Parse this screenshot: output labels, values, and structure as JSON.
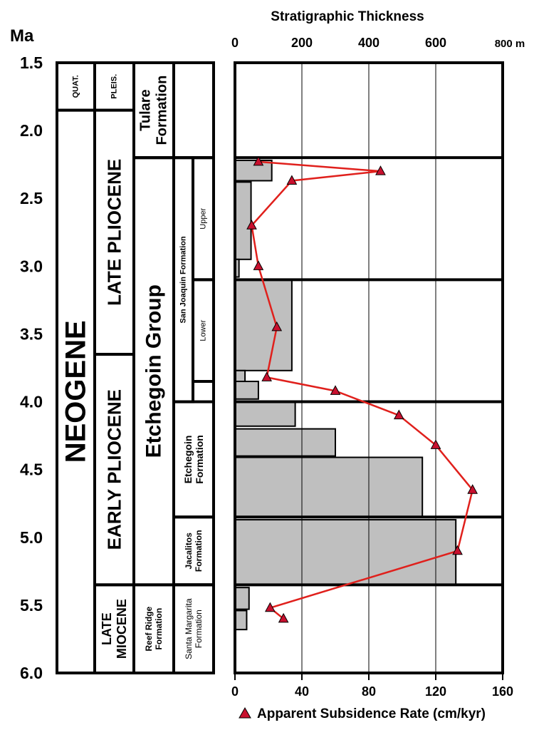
{
  "age_axis": {
    "label": "Ma",
    "ticks": [
      "1.5",
      "2.0",
      "2.5",
      "3.0",
      "3.5",
      "4.0",
      "4.5",
      "5.0",
      "5.5",
      "6.0"
    ]
  },
  "columns": {
    "era": [
      {
        "label": "QUAT.",
        "top": 1.5,
        "bottom": 1.85
      },
      {
        "label": "NEOGENE",
        "top": 1.85,
        "bottom": 6.0
      }
    ],
    "epoch": [
      {
        "label": "PLEIS.",
        "top": 1.5,
        "bottom": 1.85
      },
      {
        "label": "LATE PLIOCENE",
        "top": 1.85,
        "bottom": 3.65
      },
      {
        "label": "EARLY PLIOCENE",
        "top": 3.65,
        "bottom": 5.35
      },
      {
        "label": "LATE\nMIOCENE",
        "top": 5.35,
        "bottom": 6.0
      }
    ],
    "group": [
      {
        "label": "Tulare\nFormation",
        "top": 1.5,
        "bottom": 2.2
      },
      {
        "label": "Etchegoin Group",
        "top": 2.2,
        "bottom": 5.35
      },
      {
        "label": "Reef Ridge\nFormation",
        "top": 5.35,
        "bottom": 6.0
      }
    ],
    "formation": [
      {
        "label": "San Joaquin Formation",
        "top": 2.2,
        "bottom": 4.0
      },
      {
        "label": "Etchegoin\nFormation",
        "top": 4.0,
        "bottom": 4.85
      },
      {
        "label": "Jacalitos\nFormation",
        "top": 4.85,
        "bottom": 5.35
      },
      {
        "label": "Santa Margarita\nFormation",
        "top": 5.35,
        "bottom": 6.0
      }
    ],
    "member": [
      {
        "label": "Upper",
        "top": 2.2,
        "bottom": 3.1
      },
      {
        "label": "Lower",
        "top": 3.1,
        "bottom": 3.85
      }
    ]
  },
  "chart_data": {
    "type": "bar",
    "orientation": "horizontal",
    "top_axis": {
      "title": "Stratigraphic Thickness",
      "ticks": [
        "0",
        "200",
        "400",
        "600",
        "800 m"
      ],
      "range": [
        0,
        800
      ]
    },
    "bottom_axis": {
      "ticks": [
        "0",
        "40",
        "80",
        "120",
        "160"
      ],
      "range": [
        0,
        160
      ]
    },
    "y_range": [
      1.5,
      6.0
    ],
    "y_unit": "Ma",
    "gridlines": [
      200,
      400,
      600
    ],
    "boundaries": [
      2.2,
      3.1,
      4.0,
      4.85,
      5.35
    ],
    "thickness_bars": [
      {
        "top": 2.22,
        "bottom": 2.37,
        "value": 110
      },
      {
        "top": 2.38,
        "bottom": 2.95,
        "value": 48
      },
      {
        "top": 2.95,
        "bottom": 3.08,
        "value": 12
      },
      {
        "top": 3.1,
        "bottom": 3.77,
        "value": 170
      },
      {
        "top": 3.77,
        "bottom": 3.85,
        "value": 30
      },
      {
        "top": 3.85,
        "bottom": 3.98,
        "value": 70
      },
      {
        "top": 4.0,
        "bottom": 4.18,
        "value": 180
      },
      {
        "top": 4.2,
        "bottom": 4.4,
        "value": 300
      },
      {
        "top": 4.41,
        "bottom": 4.85,
        "value": 560
      },
      {
        "top": 4.87,
        "bottom": 5.35,
        "value": 660
      },
      {
        "top": 5.37,
        "bottom": 5.53,
        "value": 42
      },
      {
        "top": 5.54,
        "bottom": 5.68,
        "value": 35
      }
    ],
    "series": [
      {
        "name": "Apparent Subsidence Rate (cm/kyr)",
        "color": "#e0201c",
        "marker": "triangle",
        "marker_color": "#c8102e",
        "points": [
          {
            "age": 2.23,
            "rate": 14
          },
          {
            "age": 2.3,
            "rate": 87
          },
          {
            "age": 2.37,
            "rate": 34
          },
          {
            "age": 2.7,
            "rate": 10
          },
          {
            "age": 3.0,
            "rate": 14
          },
          {
            "age": 3.45,
            "rate": 25
          },
          {
            "age": 3.82,
            "rate": 19
          },
          {
            "age": 3.92,
            "rate": 60
          },
          {
            "age": 4.1,
            "rate": 98
          },
          {
            "age": 4.32,
            "rate": 120
          },
          {
            "age": 4.65,
            "rate": 142
          },
          {
            "age": 5.1,
            "rate": 133
          },
          {
            "age": 5.52,
            "rate": 21
          },
          {
            "age": 5.6,
            "rate": 29
          }
        ]
      }
    ],
    "legend_placement": "bottom"
  },
  "colors": {
    "bar_fill": "#bfbfbf",
    "line": "#e0201c",
    "marker": "#c8102e",
    "frame": "#000000"
  }
}
